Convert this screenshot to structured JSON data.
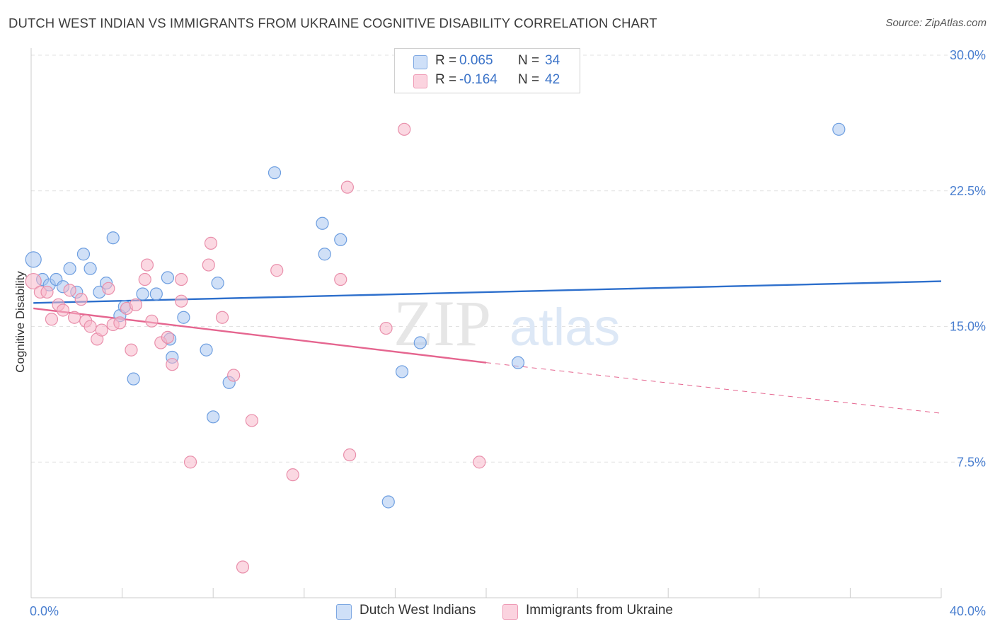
{
  "header": {
    "title": "DUTCH WEST INDIAN VS IMMIGRANTS FROM UKRAINE COGNITIVE DISABILITY CORRELATION CHART",
    "source": "Source: ZipAtlas.com"
  },
  "watermark": {
    "zip": "ZIP",
    "atlas": "atlas"
  },
  "legend": {
    "rows": [
      {
        "r_label": "R =",
        "r_value": "0.065",
        "n_label": "N =",
        "n_value": "34",
        "color": "#a9c6f0"
      },
      {
        "r_label": "R =",
        "r_value": "-0.164",
        "n_label": "N =",
        "n_value": "42",
        "color": "#f7b8cb"
      }
    ]
  },
  "bottom_legend": {
    "items": [
      {
        "label": "Dutch West Indians",
        "color": "#a9c6f0"
      },
      {
        "label": "Immigrants from Ukraine",
        "color": "#f7b8cb"
      }
    ]
  },
  "chart_data": {
    "type": "scatter",
    "xlabel": "",
    "ylabel": "Cognitive Disability",
    "xlim": [
      0,
      40
    ],
    "ylim": [
      0,
      30
    ],
    "x_tick_labels": [
      "0.0%",
      "40.0%"
    ],
    "y_ticks": [
      7.5,
      15.0,
      22.5,
      30.0
    ],
    "y_tick_labels": [
      "7.5%",
      "15.0%",
      "22.5%",
      "30.0%"
    ],
    "grid": "horizontal dashed",
    "series": [
      {
        "name": "Dutch West Indians",
        "color": "#a9c6f0",
        "stroke": "#6d9ee0",
        "trend_color": "#2d6fcc",
        "trend": {
          "x_start": 0.1,
          "y_start": 16.3,
          "x_end": 40,
          "y_end": 17.5
        },
        "points": [
          [
            0.1,
            18.7
          ],
          [
            0.5,
            17.6
          ],
          [
            0.8,
            17.3
          ],
          [
            1.1,
            17.6
          ],
          [
            1.4,
            17.2
          ],
          [
            1.7,
            18.2
          ],
          [
            2.0,
            16.9
          ],
          [
            2.3,
            19.0
          ],
          [
            2.6,
            18.2
          ],
          [
            3.0,
            16.9
          ],
          [
            3.3,
            17.4
          ],
          [
            3.6,
            19.9
          ],
          [
            3.9,
            15.6
          ],
          [
            4.1,
            16.1
          ],
          [
            4.5,
            12.1
          ],
          [
            4.9,
            16.8
          ],
          [
            5.5,
            16.8
          ],
          [
            6.0,
            17.7
          ],
          [
            6.2,
            13.3
          ],
          [
            6.7,
            15.5
          ],
          [
            6.1,
            14.3
          ],
          [
            7.7,
            13.7
          ],
          [
            8.2,
            17.4
          ],
          [
            8.0,
            10.0
          ],
          [
            8.7,
            11.9
          ],
          [
            10.7,
            23.5
          ],
          [
            12.8,
            20.7
          ],
          [
            12.9,
            19.0
          ],
          [
            13.6,
            19.8
          ],
          [
            15.7,
            5.3
          ],
          [
            16.3,
            12.5
          ],
          [
            17.1,
            14.1
          ],
          [
            21.4,
            13.0
          ],
          [
            35.5,
            25.9
          ]
        ]
      },
      {
        "name": "Immigrants from Ukraine",
        "color": "#f7b8cb",
        "stroke": "#e98fab",
        "trend_color": "#e5658f",
        "trend": {
          "x_start": 0.1,
          "y_start": 16.0,
          "x_end": 20.0,
          "y_end": 13.0,
          "dash_x_end": 40.0,
          "dash_y_end": 10.2
        },
        "points": [
          [
            0.1,
            17.5
          ],
          [
            0.4,
            16.9
          ],
          [
            0.7,
            16.9
          ],
          [
            0.9,
            15.4
          ],
          [
            1.2,
            16.2
          ],
          [
            1.4,
            15.9
          ],
          [
            1.7,
            17.0
          ],
          [
            1.9,
            15.5
          ],
          [
            2.2,
            16.5
          ],
          [
            2.4,
            15.3
          ],
          [
            2.6,
            15.0
          ],
          [
            2.9,
            14.3
          ],
          [
            3.1,
            14.8
          ],
          [
            3.4,
            17.1
          ],
          [
            3.6,
            15.1
          ],
          [
            3.9,
            15.2
          ],
          [
            4.2,
            16.0
          ],
          [
            4.4,
            13.7
          ],
          [
            4.6,
            16.2
          ],
          [
            5.0,
            17.6
          ],
          [
            5.1,
            18.4
          ],
          [
            5.3,
            15.3
          ],
          [
            5.7,
            14.1
          ],
          [
            6.0,
            14.4
          ],
          [
            6.2,
            12.9
          ],
          [
            6.6,
            16.4
          ],
          [
            6.6,
            17.6
          ],
          [
            7.0,
            7.5
          ],
          [
            7.8,
            18.4
          ],
          [
            7.9,
            19.6
          ],
          [
            8.4,
            15.5
          ],
          [
            8.9,
            12.3
          ],
          [
            9.3,
            1.7
          ],
          [
            9.7,
            9.8
          ],
          [
            10.8,
            18.1
          ],
          [
            11.5,
            6.8
          ],
          [
            13.6,
            17.6
          ],
          [
            13.9,
            22.7
          ],
          [
            14.0,
            7.9
          ],
          [
            15.6,
            14.9
          ],
          [
            16.4,
            25.9
          ],
          [
            19.7,
            7.5
          ]
        ]
      }
    ]
  }
}
